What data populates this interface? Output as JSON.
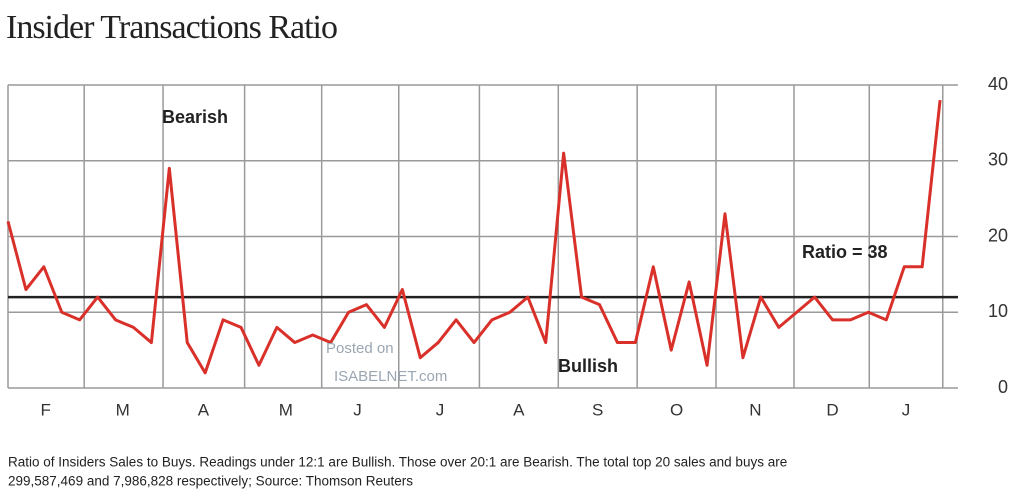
{
  "chart_data": {
    "type": "line",
    "title": "Insider Transactions Ratio",
    "caption": [
      "Ratio of Insiders Sales to Buys. Readings under 12:1 are Bullish. Those over 20:1 are Bearish. The total top 20 sales and buys are",
      "299,587,469 and 7,986,828 respectively; Source: Thomson Reuters"
    ],
    "annotations": {
      "bearish": "Bearish",
      "bullish": "Bullish",
      "ratio": "Ratio = 38",
      "watermark": [
        "Posted on",
        "ISABELNET.com"
      ]
    },
    "x": [
      0,
      1,
      2,
      3,
      4,
      5,
      6,
      7,
      8,
      9,
      10,
      11,
      12,
      13,
      14,
      15,
      16,
      17,
      18,
      19,
      20,
      21,
      22,
      23,
      24,
      25,
      26,
      27,
      28,
      29,
      30,
      31,
      32,
      33,
      34,
      35,
      36,
      37,
      38,
      39,
      40,
      41,
      42,
      43,
      44,
      45,
      46,
      47,
      48,
      49,
      50,
      51,
      52
    ],
    "series": [
      {
        "name": "Ratio",
        "color": "#d9302a",
        "values": [
          22,
          13,
          16,
          10,
          9,
          12,
          9,
          8,
          6,
          29,
          6,
          2,
          9,
          8,
          3,
          8,
          6,
          7,
          6,
          10,
          11,
          8,
          13,
          4,
          6,
          9,
          6,
          9,
          10,
          12,
          6,
          31,
          12,
          11,
          6,
          6,
          16,
          5,
          14,
          3,
          23,
          4,
          12,
          8,
          10,
          12,
          9,
          9,
          10,
          9,
          16,
          16,
          38
        ]
      }
    ],
    "threshold": 12,
    "xlim": [
      0,
      53
    ],
    "xticks": [
      {
        "value": 2.1,
        "label": "F"
      },
      {
        "value": 6.4,
        "label": "M"
      },
      {
        "value": 10.9,
        "label": "A"
      },
      {
        "value": 15.5,
        "label": "M"
      },
      {
        "value": 19.5,
        "label": "J"
      },
      {
        "value": 24.1,
        "label": "J"
      },
      {
        "value": 28.5,
        "label": "A"
      },
      {
        "value": 32.9,
        "label": "S"
      },
      {
        "value": 37.3,
        "label": "O"
      },
      {
        "value": 41.7,
        "label": "N"
      },
      {
        "value": 46.0,
        "label": "D"
      },
      {
        "value": 50.1,
        "label": "J"
      }
    ],
    "ylim": [
      0,
      40
    ],
    "yticks": [
      0,
      10,
      20,
      30,
      40
    ],
    "grid": true
  }
}
